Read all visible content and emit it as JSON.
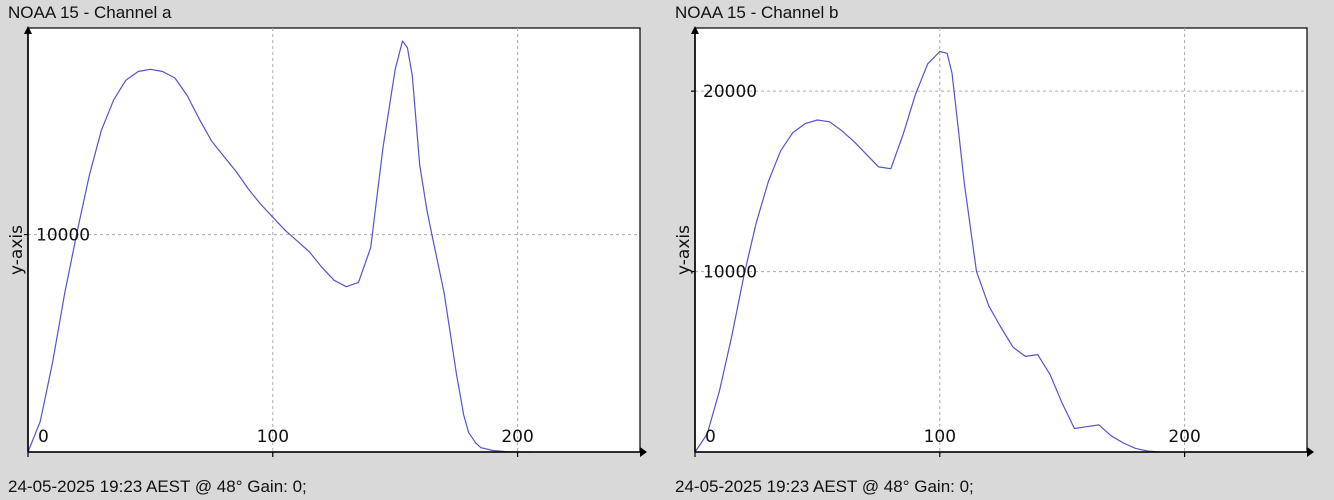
{
  "panels": [
    {
      "title": "NOAA 15 - Channel a",
      "footer": "24-05-2025 19:23 AEST @ 48° Gain: 0;"
    },
    {
      "title": "NOAA 15 - Channel b",
      "footer": "24-05-2025 19:23 AEST @ 48° Gain: 0;"
    }
  ],
  "chart_data": [
    {
      "type": "line",
      "title": "NOAA 15 - Channel a",
      "xlabel": "",
      "ylabel": "y-axis",
      "xlim": [
        0,
        250
      ],
      "ylim": [
        0,
        19500
      ],
      "xticks": [
        0,
        100,
        200
      ],
      "yticks": [
        10000
      ],
      "grid": true,
      "line_color": "#5555c8",
      "series": [
        {
          "x": [
            0,
            5,
            10,
            15,
            20,
            25,
            30,
            35,
            40,
            45,
            50,
            55,
            60,
            65,
            70,
            75,
            80,
            85,
            90,
            95,
            100,
            105,
            110,
            115,
            120,
            125,
            130,
            135,
            140,
            145,
            150,
            153,
            155,
            157,
            160,
            163,
            165,
            170,
            175,
            178,
            180,
            183,
            185,
            190,
            195,
            200,
            205
          ],
          "y": [
            0,
            1400,
            4100,
            7300,
            10100,
            12700,
            14800,
            16200,
            17100,
            17500,
            17600,
            17500,
            17200,
            16400,
            15300,
            14300,
            13600,
            12900,
            12100,
            11400,
            10800,
            10200,
            9700,
            9200,
            8500,
            7900,
            7600,
            7800,
            9400,
            14000,
            17600,
            18900,
            18600,
            17300,
            13200,
            11100,
            10000,
            7300,
            3600,
            1700,
            900,
            400,
            200,
            70,
            20,
            0,
            0
          ]
        }
      ]
    },
    {
      "type": "line",
      "title": "NOAA 15 - Channel b",
      "xlabel": "",
      "ylabel": "y-axis",
      "xlim": [
        0,
        250
      ],
      "ylim": [
        0,
        23500
      ],
      "xticks": [
        0,
        100,
        200
      ],
      "yticks": [
        10000,
        20000
      ],
      "grid": true,
      "line_color": "#5555c8",
      "series": [
        {
          "x": [
            0,
            5,
            10,
            15,
            20,
            25,
            30,
            35,
            40,
            45,
            50,
            55,
            60,
            65,
            70,
            75,
            80,
            85,
            90,
            95,
            100,
            103,
            105,
            107,
            110,
            115,
            120,
            125,
            130,
            135,
            140,
            145,
            150,
            155,
            160,
            165,
            170,
            175,
            180,
            185,
            190
          ],
          "y": [
            0,
            1000,
            3400,
            6400,
            9800,
            12700,
            15000,
            16700,
            17700,
            18200,
            18400,
            18300,
            17800,
            17200,
            16500,
            15800,
            15700,
            17600,
            19800,
            21500,
            22200,
            22100,
            21000,
            18600,
            14900,
            10000,
            8100,
            6900,
            5800,
            5300,
            5400,
            4300,
            2700,
            1300,
            1400,
            1500,
            900,
            500,
            200,
            50,
            0
          ]
        }
      ]
    }
  ]
}
